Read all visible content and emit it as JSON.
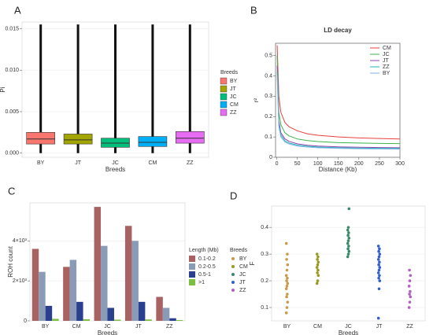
{
  "chart_data": [
    {
      "type": "box",
      "label": "A",
      "x_label": "Breeds",
      "y_label": "Pi",
      "legend_title": "Breeds",
      "ylim": [
        -0.0005,
        0.0158
      ],
      "yticks": [
        {
          "value": 0,
          "label": "0.000"
        },
        0.005,
        {
          "value": 0.01,
          "label": "0.010"
        },
        0.015
      ],
      "boxes": [
        {
          "name": "BY",
          "color": "#f8766d",
          "whisker_low": 0,
          "q1": 0.0011,
          "median": 0.0017,
          "q3": 0.0025,
          "whisker_high": 0.0155
        },
        {
          "name": "JT",
          "color": "#a3a500",
          "whisker_low": 0,
          "q1": 0.0011,
          "median": 0.0016,
          "q3": 0.0023,
          "whisker_high": 0.0155
        },
        {
          "name": "JC",
          "color": "#00bf7d",
          "whisker_low": 0,
          "q1": 0.0007,
          "median": 0.0012,
          "q3": 0.0018,
          "whisker_high": 0.0155
        },
        {
          "name": "CM",
          "color": "#00b0f6",
          "whisker_low": 0,
          "q1": 0.0008,
          "median": 0.0013,
          "q3": 0.002,
          "whisker_high": 0.0155
        },
        {
          "name": "ZZ",
          "color": "#e76bf3",
          "whisker_low": 0,
          "q1": 0.0012,
          "median": 0.0018,
          "q3": 0.0026,
          "whisker_high": 0.0155
        }
      ]
    },
    {
      "type": "line",
      "label": "B",
      "title": "LD decay",
      "x_label": "Distance (Kb)",
      "y_label": "r²",
      "xlim": [
        -3,
        300
      ],
      "xticks": [
        0,
        50,
        100,
        150,
        200,
        250,
        300
      ],
      "ylim": [
        0,
        0.56
      ],
      "yticks": [
        0,
        0.1,
        0.2,
        0.3,
        0.4,
        0.5
      ],
      "legend": "top-right",
      "x": [
        1,
        5,
        10,
        20,
        30,
        50,
        75,
        100,
        150,
        200,
        250,
        300
      ],
      "series": [
        {
          "name": "CM",
          "color": "#e8413c",
          "values": [
            0.55,
            0.3,
            0.22,
            0.17,
            0.15,
            0.13,
            0.115,
            0.108,
            0.1,
            0.095,
            0.092,
            0.09
          ]
        },
        {
          "name": "JC",
          "color": "#3cb44b",
          "values": [
            0.5,
            0.22,
            0.16,
            0.12,
            0.105,
            0.09,
            0.082,
            0.077,
            0.072,
            0.07,
            0.068,
            0.067
          ]
        },
        {
          "name": "JT",
          "color": "#8e44ad",
          "values": [
            0.45,
            0.18,
            0.12,
            0.09,
            0.078,
            0.066,
            0.059,
            0.055,
            0.051,
            0.049,
            0.048,
            0.047
          ]
        },
        {
          "name": "ZZ",
          "color": "#1fb5b5",
          "values": [
            0.42,
            0.16,
            0.11,
            0.08,
            0.07,
            0.06,
            0.054,
            0.05,
            0.047,
            0.045,
            0.044,
            0.043
          ]
        },
        {
          "name": "BY",
          "color": "#7fb3e8",
          "values": [
            0.4,
            0.15,
            0.1,
            0.075,
            0.065,
            0.055,
            0.05,
            0.047,
            0.044,
            0.042,
            0.041,
            0.04
          ]
        }
      ]
    },
    {
      "type": "bar",
      "label": "C",
      "x_label": "Breeds",
      "y_label": "ROH count",
      "legend_title": "Length (Mb)",
      "categories": [
        "BY",
        "CM",
        "JC",
        "JT",
        "ZZ"
      ],
      "ylim": [
        0,
        5900
      ],
      "yticks": [
        0,
        {
          "value": 2000,
          "label": "2×10³"
        },
        {
          "value": 4000,
          "label": "4×10³"
        }
      ],
      "series": [
        {
          "name": "0.1-0.2",
          "color": "#a86262",
          "values": [
            3600,
            2700,
            5700,
            4750,
            1200
          ]
        },
        {
          "name": "0.2-0.5",
          "color": "#8a9bb8",
          "values": [
            2450,
            3050,
            3750,
            4000,
            650
          ]
        },
        {
          "name": "0.5-1",
          "color": "#2b3f8f",
          "values": [
            750,
            950,
            650,
            950,
            130
          ]
        },
        {
          "name": ">1",
          "color": "#7fbf3f",
          "values": [
            100,
            80,
            60,
            70,
            40
          ]
        }
      ]
    },
    {
      "type": "strip",
      "label": "D",
      "x_label": "Breeds",
      "y_label": "F",
      "legend_title": "Breeds",
      "ylim": [
        0.05,
        0.48
      ],
      "yticks": [
        0.1,
        0.2,
        0.3,
        0.4
      ],
      "groups": [
        {
          "name": "BY",
          "color": "#c89a4a",
          "values": [
            0.08,
            0.1,
            0.12,
            0.14,
            0.15,
            0.17,
            0.18,
            0.19,
            0.2,
            0.21,
            0.22,
            0.24,
            0.26,
            0.28,
            0.3,
            0.34
          ]
        },
        {
          "name": "CM",
          "color": "#9a9a20",
          "values": [
            0.19,
            0.2,
            0.22,
            0.23,
            0.24,
            0.25,
            0.26,
            0.27,
            0.28,
            0.29,
            0.3
          ]
        },
        {
          "name": "JC",
          "color": "#3a8a6a",
          "values": [
            0.29,
            0.3,
            0.31,
            0.32,
            0.33,
            0.34,
            0.35,
            0.36,
            0.37,
            0.38,
            0.39,
            0.4,
            0.47
          ]
        },
        {
          "name": "JT",
          "color": "#3060d0",
          "values": [
            0.06,
            0.17,
            0.2,
            0.21,
            0.22,
            0.23,
            0.24,
            0.25,
            0.26,
            0.27,
            0.28,
            0.29,
            0.3,
            0.31,
            0.32,
            0.33
          ]
        },
        {
          "name": "ZZ",
          "color": "#b060c0",
          "values": [
            0.1,
            0.12,
            0.14,
            0.15,
            0.16,
            0.18,
            0.2,
            0.22,
            0.24
          ]
        }
      ]
    }
  ]
}
